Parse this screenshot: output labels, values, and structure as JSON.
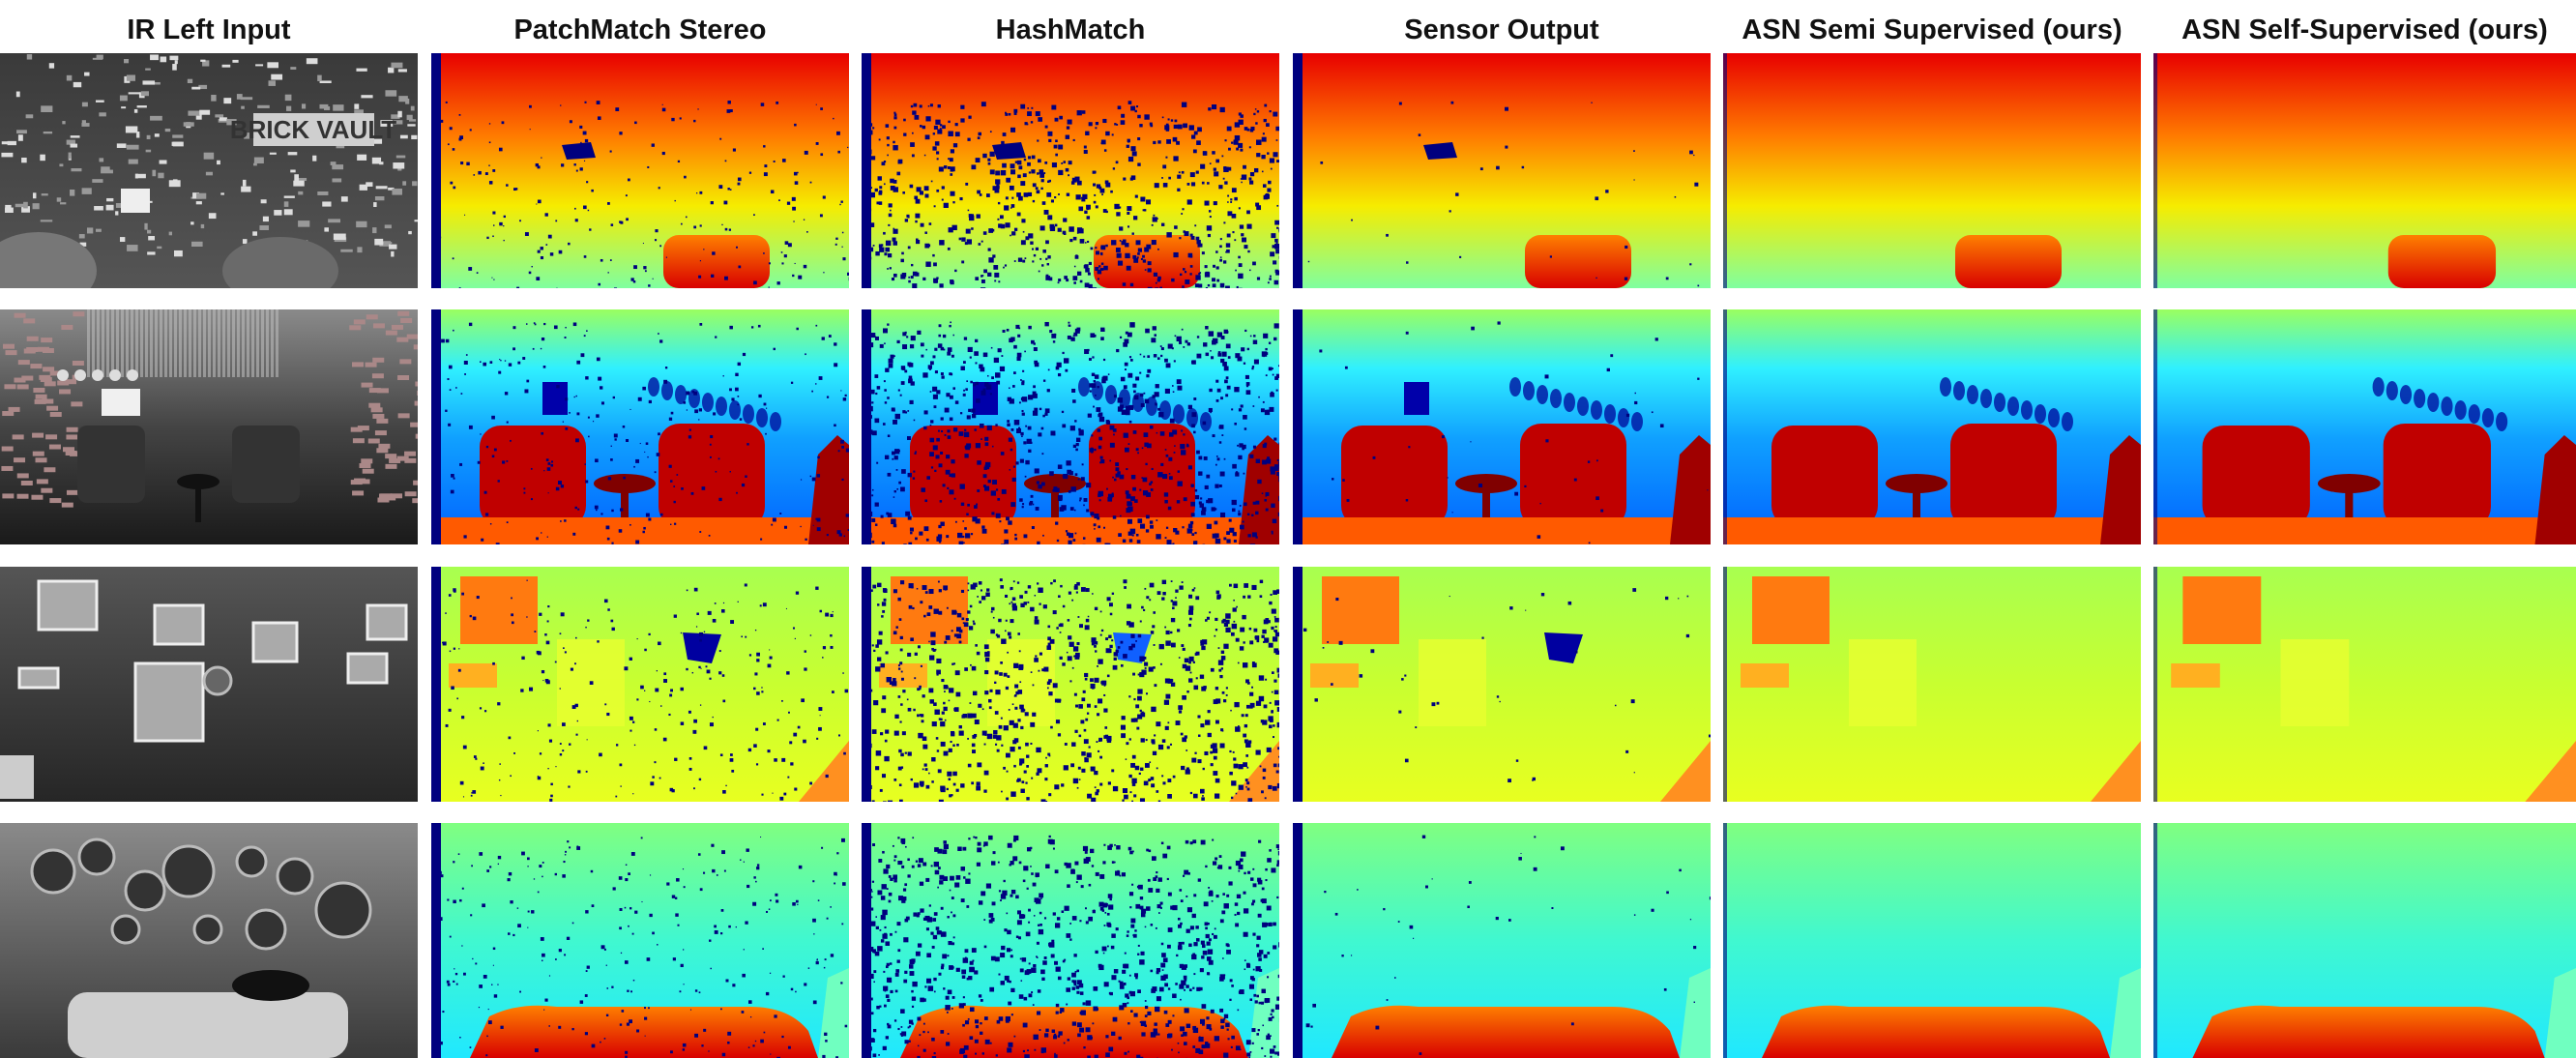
{
  "columns": [
    {
      "title": "IR Left Input",
      "kind": "ir"
    },
    {
      "title": "PatchMatch Stereo",
      "kind": "depth",
      "noise": "medium"
    },
    {
      "title": "HashMatch",
      "kind": "depth",
      "noise": "high"
    },
    {
      "title": "Sensor Output",
      "kind": "depth",
      "noise": "low"
    },
    {
      "title": "ASN Semi Supervised (ours)",
      "kind": "depth",
      "noise": "none"
    },
    {
      "title": "ASN Self-Supervised (ours)",
      "kind": "depth",
      "noise": "none"
    }
  ],
  "rows": [
    {
      "scene": "brick-vault-wall",
      "ir_sign_text": "BRICK VAULT"
    },
    {
      "scene": "lounge-armchairs"
    },
    {
      "scene": "framed-pictures-wall"
    },
    {
      "scene": "clocks-wall-sofa"
    }
  ],
  "colormap": [
    "#00007f",
    "#0000ff",
    "#00ffff",
    "#ffff00",
    "#ff0000",
    "#7f0000"
  ]
}
